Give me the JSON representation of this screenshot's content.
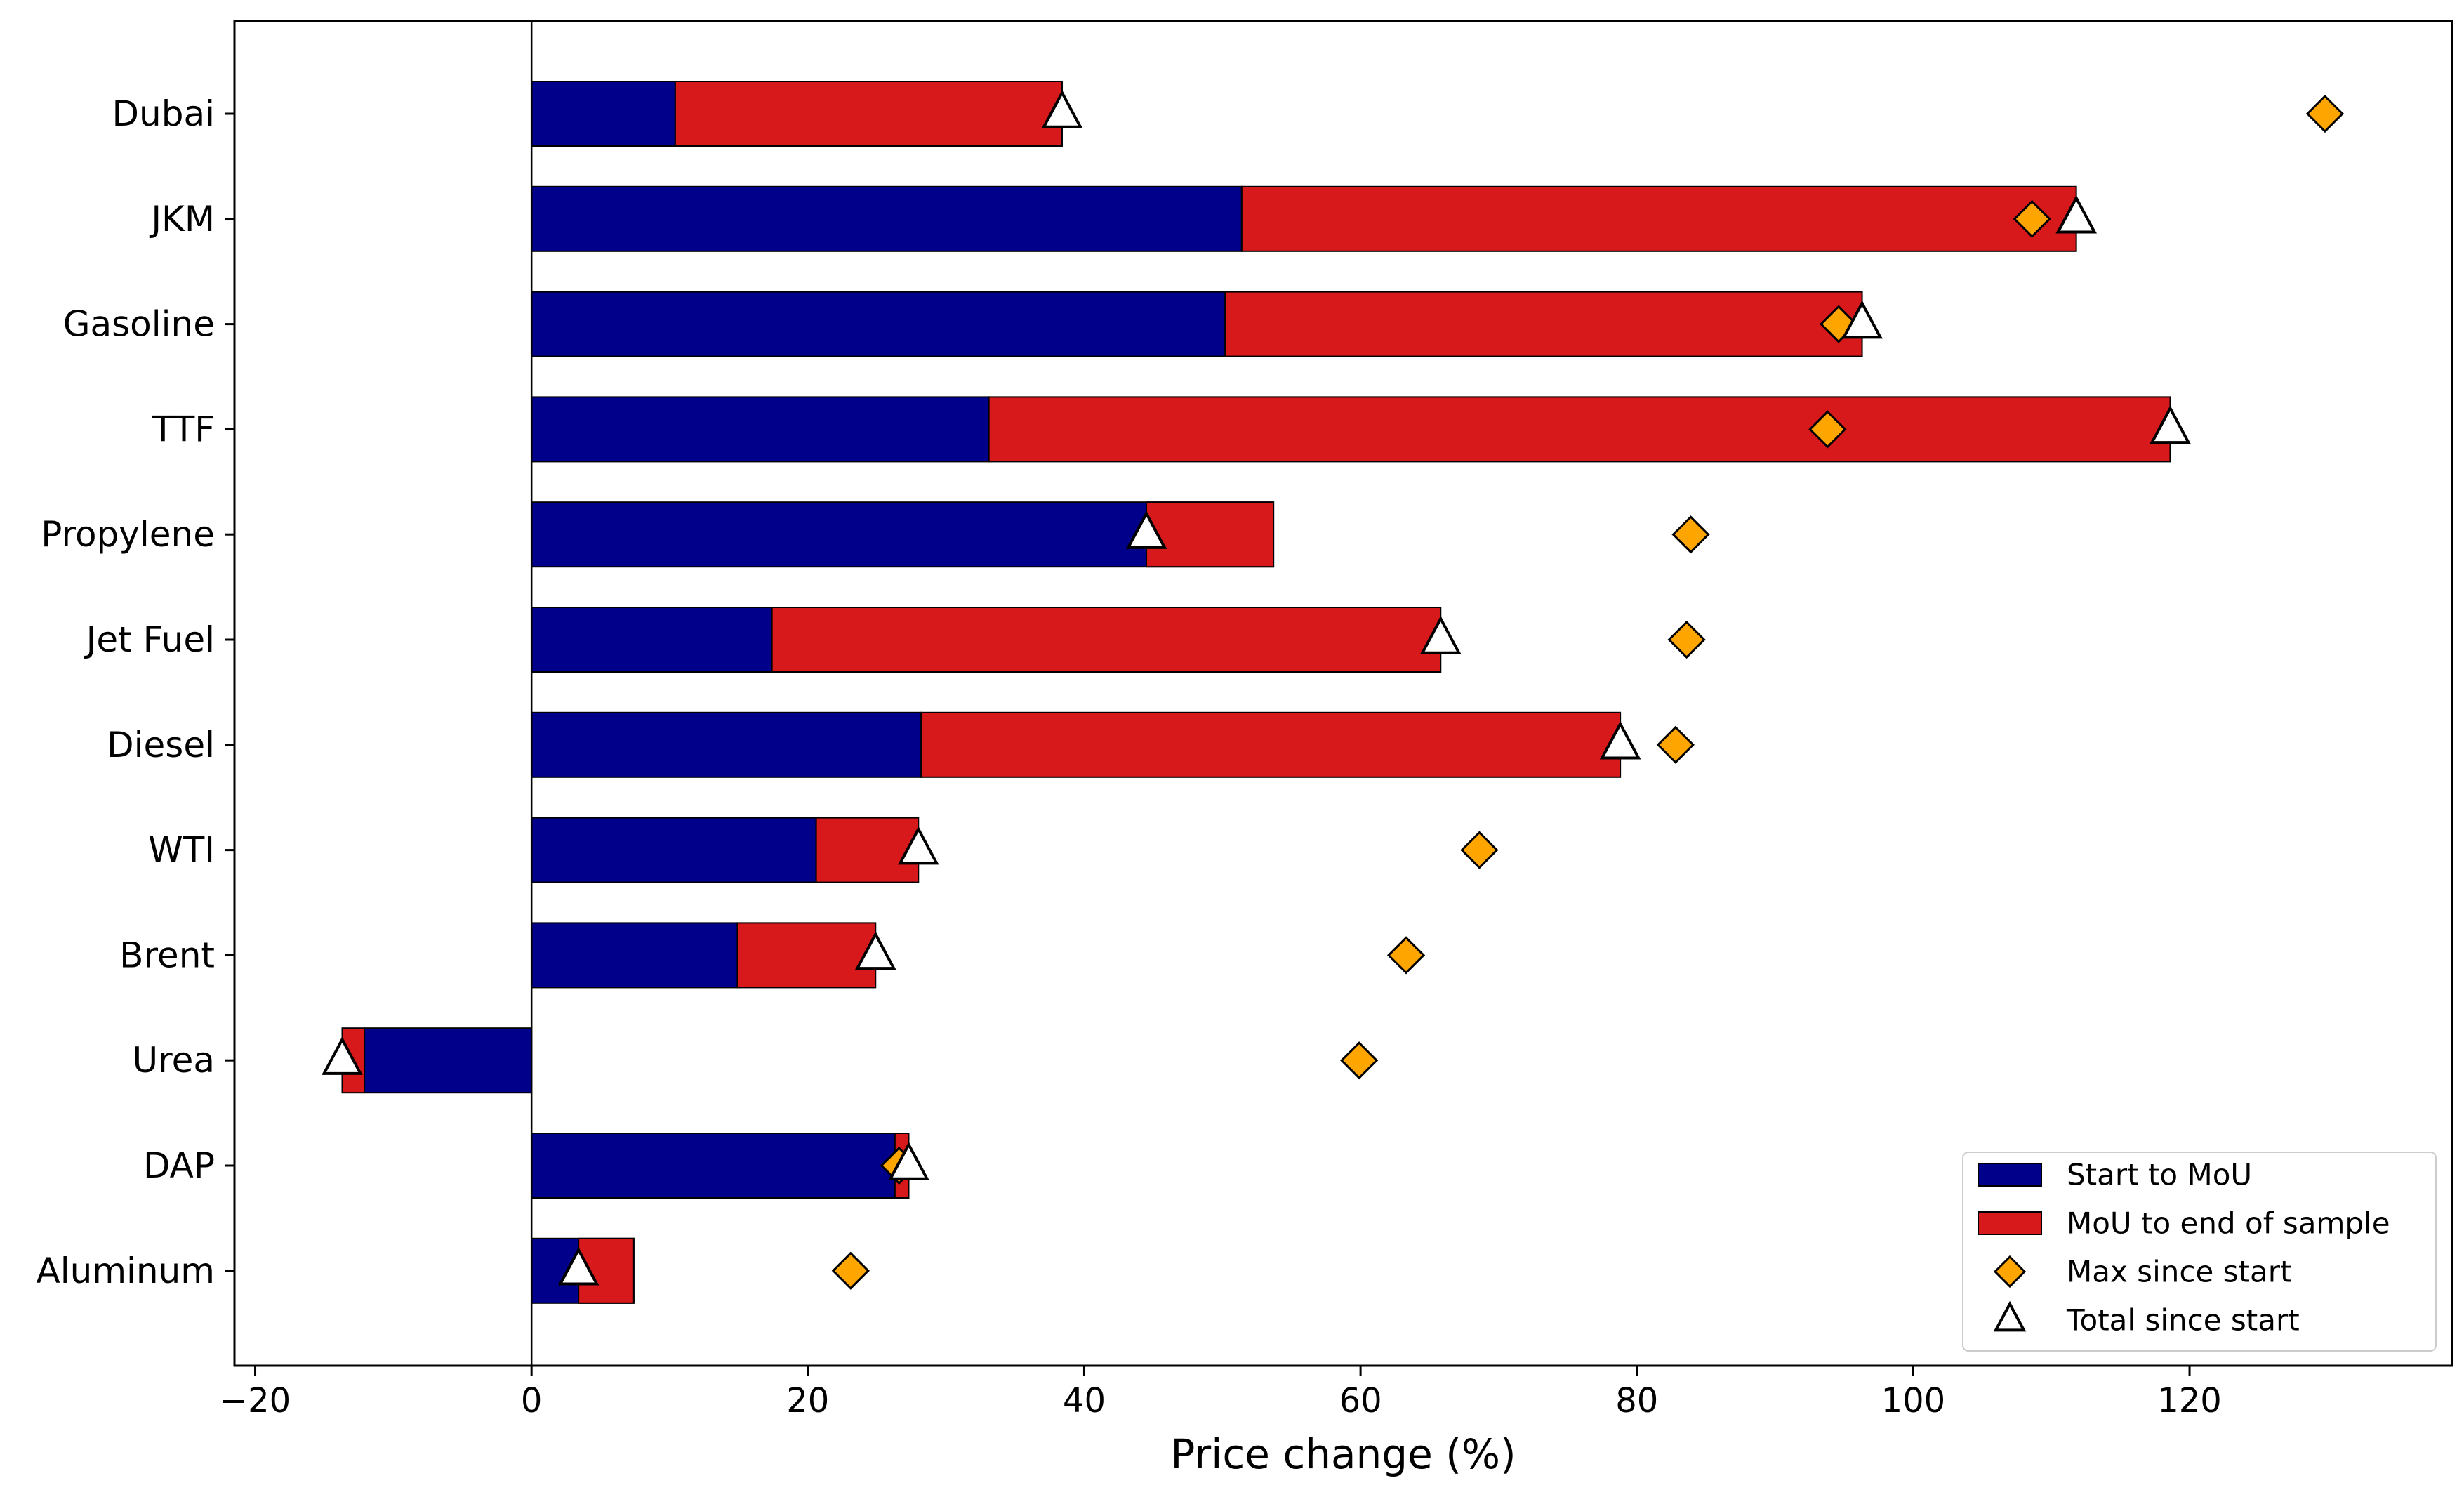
{
  "colors": {
    "start_to_mou": "#00008b",
    "mou_to_end": "#d7191c",
    "max_marker": "#ffa500",
    "total_marker": "#ffffff",
    "edge": "#000000",
    "zero_line": "#000000"
  },
  "chart_data": {
    "type": "bar",
    "orientation": "horizontal",
    "title": "",
    "xlabel": "Price change (%)",
    "ylabel": "",
    "xlim": [
      -21.5,
      139
    ],
    "xticks": [
      -20,
      0,
      20,
      40,
      60,
      80,
      100,
      120
    ],
    "xtick_labels": [
      "−20",
      "0",
      "20",
      "40",
      "60",
      "80",
      "100",
      "120"
    ],
    "grid": false,
    "legend_position": "lower right",
    "categories": [
      "Dubai",
      "JKM",
      "Gasoline",
      "TTF",
      "Propylene",
      "Jet Fuel",
      "Diesel",
      "WTI",
      "Brent",
      "Urea",
      "DAP",
      "Aluminum"
    ],
    "series": [
      {
        "name": "Start to MoU",
        "kind": "bar",
        "values": [
          10.4,
          51.4,
          50.2,
          33.1,
          53.7,
          17.4,
          28.2,
          20.6,
          14.9,
          -12.1,
          26.3,
          7.4
        ]
      },
      {
        "name": "MoU to end of sample",
        "kind": "bar",
        "values": [
          28.0,
          60.4,
          46.1,
          85.5,
          -9.2,
          48.4,
          50.6,
          7.4,
          10.0,
          -1.6,
          1.0,
          -4.0
        ]
      },
      {
        "name": "Max since start",
        "kind": "marker",
        "marker": "diamond",
        "values": [
          129.8,
          108.6,
          94.6,
          93.8,
          83.9,
          83.6,
          82.8,
          68.6,
          63.3,
          59.9,
          26.6,
          23.1
        ]
      },
      {
        "name": "Total since start",
        "kind": "marker",
        "marker": "triangle",
        "values": [
          38.4,
          111.8,
          96.3,
          118.6,
          44.5,
          65.8,
          78.8,
          28.0,
          24.9,
          -13.7,
          27.3,
          3.4
        ]
      }
    ]
  }
}
